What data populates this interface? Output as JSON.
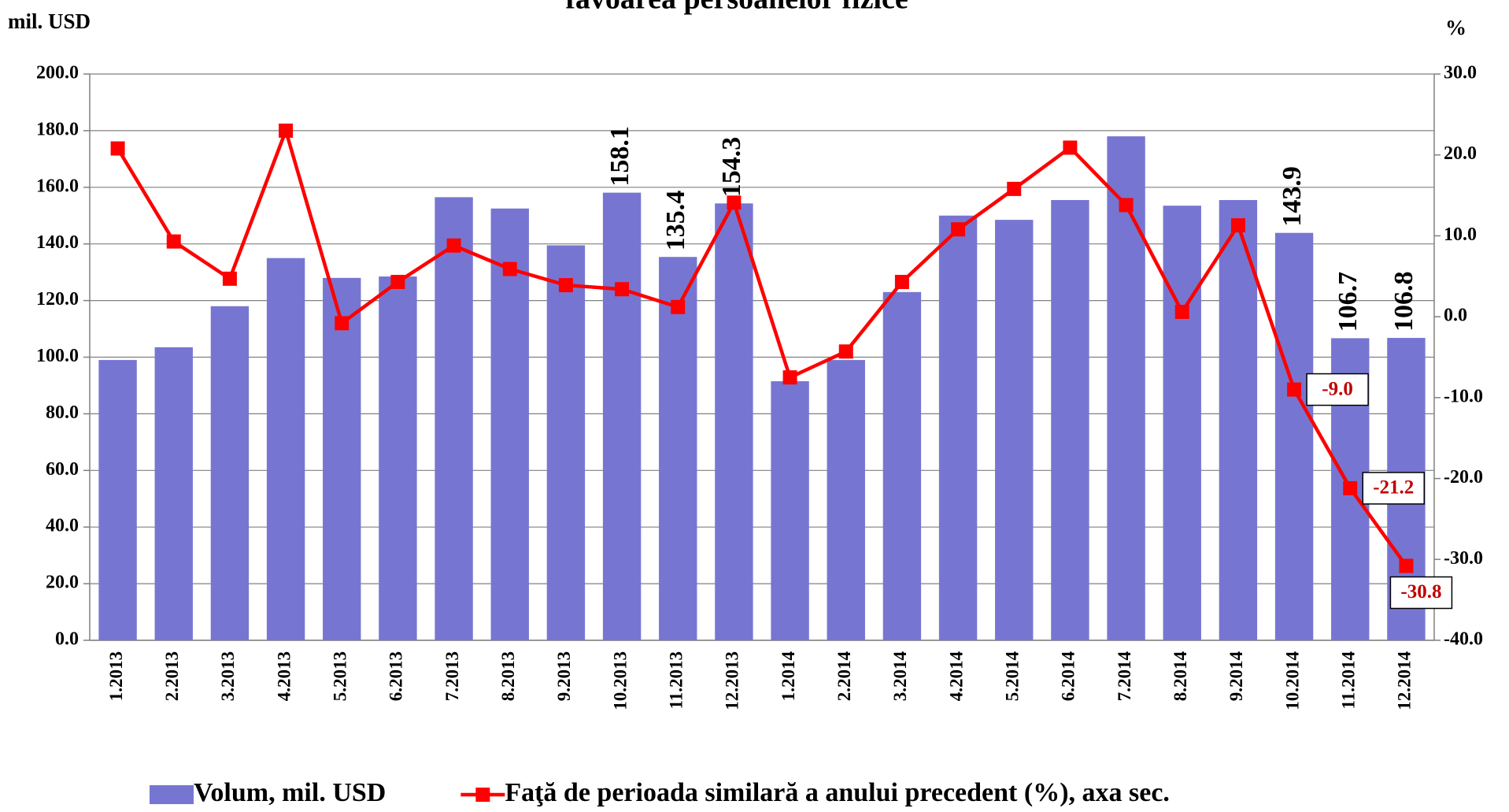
{
  "chart_data": {
    "type": "bar-line",
    "title": "favoarea persoanelor fizice",
    "y_label": "mil. USD",
    "y2_label": "%",
    "categories": [
      "1.2013",
      "2.2013",
      "3.2013",
      "4.2013",
      "5.2013",
      "6.2013",
      "7.2013",
      "8.2013",
      "9.2013",
      "10.2013",
      "11.2013",
      "12.2013",
      "1.2014",
      "2.2014",
      "3.2014",
      "4.2014",
      "5.2014",
      "6.2014",
      "7.2014",
      "8.2014",
      "9.2014",
      "10.2014",
      "11.2014",
      "12.2014"
    ],
    "series": [
      {
        "name": "Volum, mil. USD",
        "type": "bar",
        "color": "#7676d2",
        "values": [
          99,
          103.5,
          118,
          135,
          128,
          128.5,
          156.5,
          152.5,
          139.5,
          158.1,
          135.4,
          154.3,
          91.5,
          99,
          123,
          150,
          148.5,
          155.5,
          178,
          153.5,
          155.5,
          143.9,
          106.7,
          106.8
        ],
        "value_labels": [
          null,
          null,
          null,
          null,
          null,
          null,
          null,
          null,
          null,
          "158.1",
          "135.4",
          "154.3",
          null,
          null,
          null,
          null,
          null,
          null,
          null,
          null,
          null,
          "143.9",
          "106.7",
          "106.8"
        ]
      },
      {
        "name": "Faţă de perioada similară a anului precedent (%), axa sec.",
        "type": "line",
        "axis": "y2",
        "color": "#ff0000",
        "values": [
          20.8,
          9.3,
          4.7,
          23.0,
          -0.8,
          4.3,
          8.8,
          5.9,
          3.9,
          3.4,
          1.2,
          14.1,
          -7.5,
          -4.3,
          4.3,
          10.8,
          15.8,
          20.9,
          13.8,
          0.6,
          11.3,
          -9.0,
          -21.2,
          -30.8
        ],
        "value_labels": [
          null,
          null,
          null,
          null,
          null,
          null,
          null,
          null,
          null,
          null,
          null,
          null,
          null,
          null,
          null,
          null,
          null,
          null,
          null,
          null,
          null,
          "-9.0",
          "-21.2",
          "-30.8"
        ]
      }
    ],
    "ylim": [
      0,
      200
    ],
    "yticks": [
      {
        "value": 0,
        "label": "0.0"
      },
      {
        "value": 20,
        "label": "20.0"
      },
      {
        "value": 40,
        "label": "40.0"
      },
      {
        "value": 60,
        "label": "60.0"
      },
      {
        "value": 80,
        "label": "80.0"
      },
      {
        "value": 100,
        "label": "100.0"
      },
      {
        "value": 120,
        "label": "120.0"
      },
      {
        "value": 140,
        "label": "140.0"
      },
      {
        "value": 160,
        "label": "160.0"
      },
      {
        "value": 180,
        "label": "180.0"
      },
      {
        "value": 200,
        "label": "200.0"
      }
    ],
    "y2lim": [
      -40,
      30
    ],
    "y2ticks": [
      {
        "value": -40,
        "label": "-40.0"
      },
      {
        "value": -30,
        "label": "-30.0"
      },
      {
        "value": -20,
        "label": "-20.0"
      },
      {
        "value": -10,
        "label": "-10.0"
      },
      {
        "value": 0,
        "label": "0.0"
      },
      {
        "value": 10,
        "label": "10.0"
      },
      {
        "value": 20,
        "label": "20.0"
      },
      {
        "value": 30,
        "label": "30.0"
      }
    ],
    "grid": true,
    "legend": "bottom"
  }
}
